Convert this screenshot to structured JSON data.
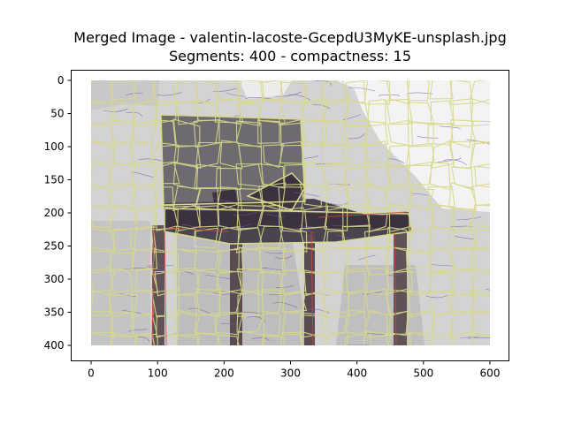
{
  "chart_data": {
    "type": "image",
    "title_line1": "Merged Image - valentin-lacoste-GcepdU3MyKE-unsplash.jpg",
    "title_line2": "Segments: 400 - compactness: 15",
    "xlabel": "",
    "ylabel": "",
    "xlim": [
      0,
      600
    ],
    "ylim": [
      400,
      0
    ],
    "xticks": [
      0,
      100,
      200,
      300,
      400,
      500,
      600
    ],
    "yticks": [
      0,
      50,
      100,
      150,
      200,
      250,
      300,
      350,
      400
    ],
    "grid": false,
    "colors": {
      "background": "#d3d3d3",
      "wall_light": "#f4f4f4",
      "chair_seat": "#6b686e",
      "chair_dark": "#3b3240",
      "legs": "#5a4a52",
      "boundary_yellow": "#d8d88a",
      "boundary_purple": "#7a5aa8",
      "boundary_red": "#c84a40"
    }
  }
}
